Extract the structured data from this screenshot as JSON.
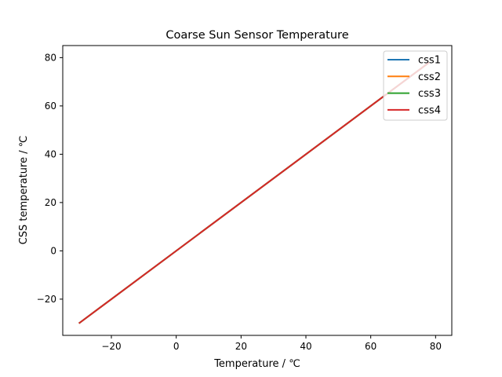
{
  "chart_data": {
    "type": "line",
    "title": "Coarse Sun Sensor Temperature",
    "xlabel": "Temperature / ℃",
    "ylabel": "CSS temperature /  ℃",
    "xlim": [
      -35,
      85
    ],
    "ylim": [
      -35,
      85
    ],
    "xticks": [
      -20,
      0,
      20,
      40,
      60,
      80
    ],
    "yticks": [
      -20,
      0,
      20,
      40,
      60,
      80
    ],
    "xtick_labels": [
      "−20",
      "0",
      "20",
      "40",
      "60",
      "80"
    ],
    "ytick_labels": [
      "−20",
      "0",
      "20",
      "40",
      "60",
      "80"
    ],
    "grid": false,
    "legend_position": "top-right",
    "series": [
      {
        "name": "css1",
        "color": "#1f77b4",
        "x": [
          -30,
          78
        ],
        "y": [
          -30,
          78
        ]
      },
      {
        "name": "css2",
        "color": "#ff7f0e",
        "x": [
          -30,
          78
        ],
        "y": [
          -30,
          78
        ]
      },
      {
        "name": "css3",
        "color": "#2ca02c",
        "x": [
          -30,
          78
        ],
        "y": [
          -30,
          78
        ]
      },
      {
        "name": "css4",
        "color": "#d62728",
        "x": [
          -30,
          78
        ],
        "y": [
          -30,
          78
        ]
      }
    ]
  }
}
